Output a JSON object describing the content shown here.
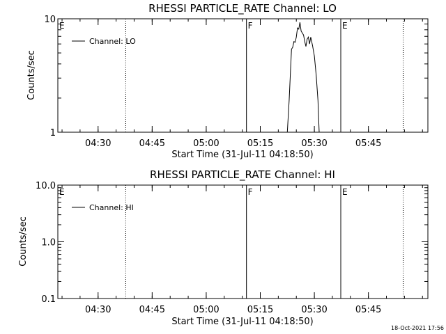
{
  "timestamp": "18-Oct-2021 17:56",
  "chart_data": [
    {
      "type": "line",
      "title": "RHESSI PARTICLE_RATE Channel: LO",
      "xlabel": "Start Time (31-Jul-11 04:18:50)",
      "ylabel": "Counts/sec",
      "yscale": "log",
      "ylim": [
        1,
        10
      ],
      "yticks": [
        "1",
        "10"
      ],
      "xlim": [
        "04:18:50",
        "06:01:30"
      ],
      "xticks": [
        "04:30",
        "04:45",
        "05:00",
        "05:15",
        "05:30",
        "05:45"
      ],
      "grid": false,
      "legend": {
        "position": "top-left",
        "entries": [
          "Channel: LO"
        ]
      },
      "annotations": [
        {
          "label": "E",
          "time": "04:18:50",
          "style": "none"
        },
        {
          "label": "",
          "time": "04:37:40",
          "style": "dotted"
        },
        {
          "label": "F",
          "time": "05:11:10",
          "style": "solid"
        },
        {
          "label": "E",
          "time": "05:37:20",
          "style": "solid"
        },
        {
          "label": "",
          "time": "05:54:40",
          "style": "dotted"
        }
      ],
      "series": [
        {
          "name": "Channel: LO",
          "x": [
            "05:22:30",
            "05:23:00",
            "05:23:20",
            "05:23:40",
            "05:24:00",
            "05:24:20",
            "05:24:40",
            "05:25:00",
            "05:25:20",
            "05:25:40",
            "05:26:00",
            "05:26:20",
            "05:26:40",
            "05:27:00",
            "05:27:20",
            "05:27:40",
            "05:28:00",
            "05:28:20",
            "05:28:40",
            "05:29:00",
            "05:29:30",
            "05:30:00",
            "05:30:30",
            "05:31:00",
            "05:31:20"
          ],
          "y": [
            1.0,
            1.9,
            3.2,
            5.4,
            5.6,
            6.3,
            6.2,
            6.9,
            8.3,
            8.1,
            9.3,
            7.8,
            7.5,
            7.2,
            6.3,
            5.7,
            6.6,
            6.9,
            6.0,
            6.9,
            5.8,
            4.7,
            3.2,
            1.9,
            1.0
          ]
        }
      ]
    },
    {
      "type": "line",
      "title": "RHESSI PARTICLE_RATE Channel: HI",
      "xlabel": "Start Time (31-Jul-11 04:18:50)",
      "ylabel": "Counts/sec",
      "yscale": "log",
      "ylim": [
        0.1,
        10
      ],
      "yticks": [
        "0.1",
        "1.0",
        "10.0"
      ],
      "xlim": [
        "04:18:50",
        "06:01:30"
      ],
      "xticks": [
        "04:30",
        "04:45",
        "05:00",
        "05:15",
        "05:30",
        "05:45"
      ],
      "grid": false,
      "legend": {
        "position": "top-left",
        "entries": [
          "Channel: HI"
        ]
      },
      "annotations": [
        {
          "label": "E",
          "time": "04:18:50",
          "style": "none"
        },
        {
          "label": "",
          "time": "04:37:40",
          "style": "dotted"
        },
        {
          "label": "F",
          "time": "05:11:10",
          "style": "solid"
        },
        {
          "label": "E",
          "time": "05:37:20",
          "style": "solid"
        },
        {
          "label": "",
          "time": "05:54:40",
          "style": "dotted"
        }
      ],
      "series": [
        {
          "name": "Channel: HI",
          "x": [],
          "y": []
        }
      ]
    }
  ]
}
